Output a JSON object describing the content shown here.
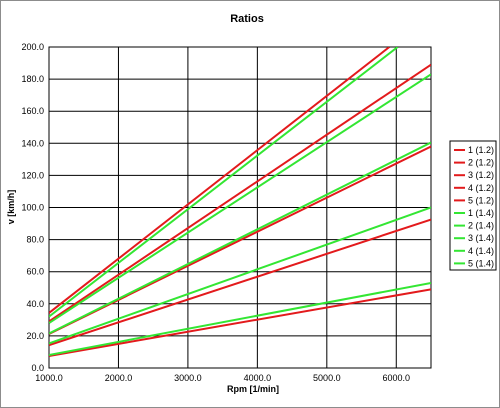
{
  "chart_data": {
    "type": "line",
    "title": "Ratios",
    "xlabel": "Rpm [1/min]",
    "ylabel": "v [km/h]",
    "xlim": [
      1000,
      6500
    ],
    "ylim": [
      0,
      200
    ],
    "x_ticks": [
      1000,
      2000,
      3000,
      4000,
      5000,
      6000
    ],
    "x_tick_labels": [
      "1000.0",
      "2000.0",
      "3000.0",
      "4000.0",
      "5000.0",
      "6000.0"
    ],
    "y_ticks": [
      0,
      20,
      40,
      60,
      80,
      100,
      120,
      140,
      160,
      180,
      200
    ],
    "y_tick_labels": [
      "0.0",
      "20.0",
      "40.0",
      "60.0",
      "80.0",
      "100.0",
      "120.0",
      "140.0",
      "160.0",
      "180.0",
      "200.0"
    ],
    "grid": true,
    "legend_position": "right",
    "series": [
      {
        "name": "1 (1.2)",
        "color": "#e31a1c",
        "x": [
          1000,
          6500
        ],
        "y": [
          7.5,
          49
        ]
      },
      {
        "name": "2 (1.2)",
        "color": "#e31a1c",
        "x": [
          1000,
          6500
        ],
        "y": [
          14.2,
          92.5
        ]
      },
      {
        "name": "3 (1.2)",
        "color": "#e31a1c",
        "x": [
          1000,
          6500
        ],
        "y": [
          21.2,
          138
        ]
      },
      {
        "name": "4 (1.2)",
        "color": "#e31a1c",
        "x": [
          1000,
          6500
        ],
        "y": [
          29,
          189
        ]
      },
      {
        "name": "5 (1.2)",
        "color": "#e31a1c",
        "x": [
          1000,
          5900
        ],
        "y": [
          34.3,
          200
        ]
      },
      {
        "name": "1 (1.4)",
        "color": "#33e633",
        "x": [
          1000,
          6500
        ],
        "y": [
          8.1,
          53
        ]
      },
      {
        "name": "2 (1.4)",
        "color": "#33e633",
        "x": [
          1000,
          6500
        ],
        "y": [
          15.3,
          100
        ]
      },
      {
        "name": "3 (1.4)",
        "color": "#33e633",
        "x": [
          1000,
          6500
        ],
        "y": [
          21.5,
          140.5
        ]
      },
      {
        "name": "4 (1.4)",
        "color": "#33e633",
        "x": [
          1000,
          6500
        ],
        "y": [
          28,
          183
        ]
      },
      {
        "name": "5 (1.4)",
        "color": "#33e633",
        "x": [
          1000,
          6020
        ],
        "y": [
          32,
          200
        ]
      }
    ]
  }
}
